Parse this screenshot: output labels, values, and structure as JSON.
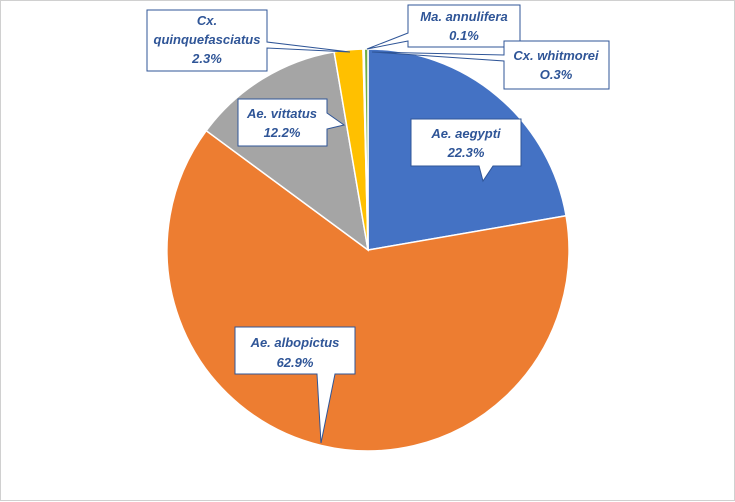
{
  "chart_data": {
    "type": "pie",
    "title": "",
    "start_angle_deg": 0,
    "direction": "clockwise",
    "legend": "none",
    "data_labels": "callouts",
    "slices": [
      {
        "name": "Ae. aegypti",
        "value": 22.3,
        "label": "22.3%",
        "color": "#4472C4"
      },
      {
        "name": "Ae. albopictus",
        "value": 62.9,
        "label": "62.9%",
        "color": "#ED7D31"
      },
      {
        "name": "Ae. vittatus",
        "value": 12.2,
        "label": "12.2%",
        "color": "#A5A5A5"
      },
      {
        "name": "Cx. quinquefasciatus",
        "value": 2.3,
        "label": "2.3%",
        "color": "#FFC000"
      },
      {
        "name": "Ma. annulifera",
        "value": 0.1,
        "label": "0.1%",
        "color": "#5B9BD5"
      },
      {
        "name": "Cx. whitmorei",
        "value": 0.3,
        "label": "O.3%",
        "color": "#70AD47"
      }
    ]
  }
}
